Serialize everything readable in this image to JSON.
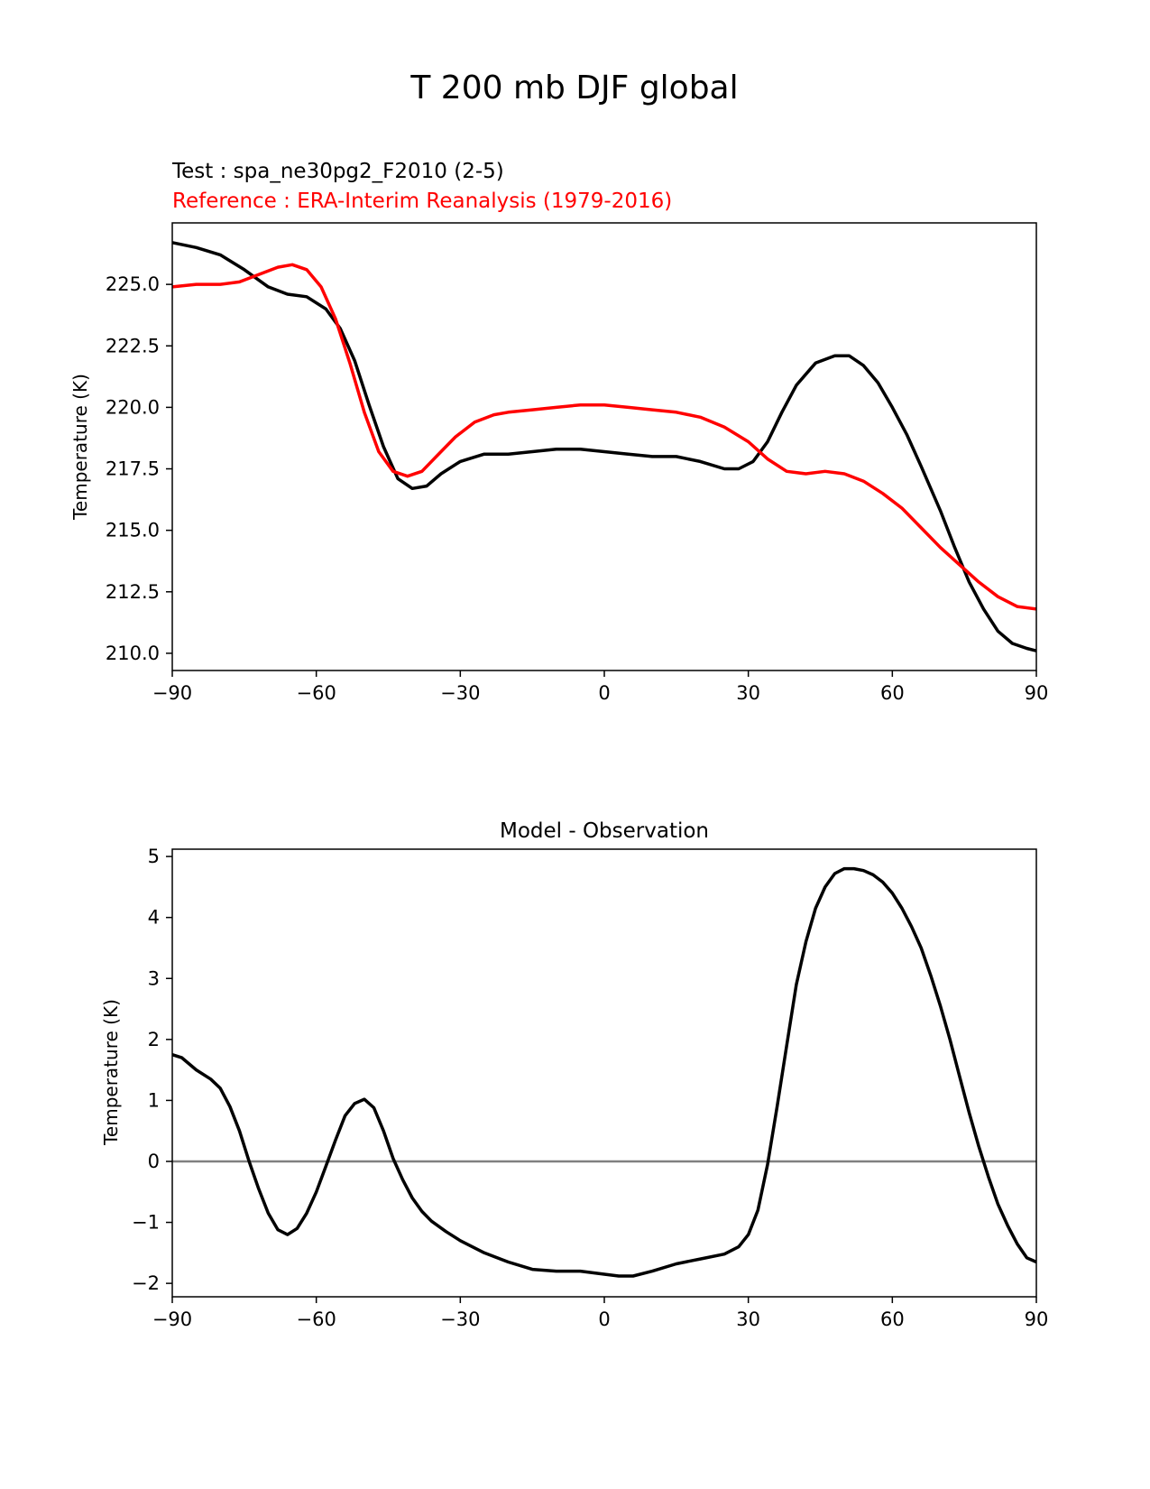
{
  "figure": {
    "suptitle": "T 200 mb DJF global"
  },
  "colors": {
    "test": "#000000",
    "reference": "#ff0000",
    "zero_line": "#808080",
    "axes": "#000000"
  },
  "chart_data": [
    {
      "type": "line",
      "test_label": "Test : spa_ne30pg2_F2010 (2-5)",
      "reference_label": "Reference : ERA-Interim Reanalysis (1979-2016)",
      "title": "",
      "xlabel": "",
      "ylabel": "Temperature (K)",
      "xlim": [
        -90,
        90
      ],
      "ylim": [
        209.3,
        227.5
      ],
      "xticks": [
        -90,
        -60,
        -30,
        0,
        30,
        60,
        90
      ],
      "xtick_labels": [
        "−90",
        "−60",
        "−30",
        "0",
        "30",
        "60",
        "90"
      ],
      "yticks": [
        210.0,
        212.5,
        215.0,
        217.5,
        220.0,
        222.5,
        225.0
      ],
      "ytick_labels": [
        "210.0",
        "212.5",
        "215.0",
        "217.5",
        "220.0",
        "222.5",
        "225.0"
      ],
      "grid": false,
      "series": [
        {
          "role": "test",
          "color": "#000000",
          "x": [
            -90,
            -85,
            -80,
            -75,
            -70,
            -66,
            -62,
            -58,
            -55,
            -52,
            -49,
            -46,
            -43,
            -40,
            -37,
            -34,
            -30,
            -25,
            -20,
            -15,
            -10,
            -5,
            0,
            5,
            10,
            15,
            20,
            25,
            28,
            31,
            34,
            37,
            40,
            44,
            48,
            51,
            54,
            57,
            60,
            63,
            66,
            70,
            73,
            76,
            79,
            82,
            85,
            88,
            90
          ],
          "y": [
            226.7,
            226.5,
            226.2,
            225.6,
            224.9,
            224.6,
            224.5,
            224.0,
            223.2,
            221.9,
            220.1,
            218.4,
            217.1,
            216.7,
            216.8,
            217.3,
            217.8,
            218.1,
            218.1,
            218.2,
            218.3,
            218.3,
            218.2,
            218.1,
            218.0,
            218.0,
            217.8,
            217.5,
            217.5,
            217.8,
            218.6,
            219.8,
            220.9,
            221.8,
            222.1,
            222.1,
            221.7,
            221.0,
            220.0,
            218.9,
            217.6,
            215.8,
            214.3,
            212.9,
            211.8,
            210.9,
            210.4,
            210.2,
            210.1
          ]
        },
        {
          "role": "reference",
          "color": "#ff0000",
          "x": [
            -90,
            -85,
            -80,
            -76,
            -72,
            -68,
            -65,
            -62,
            -59,
            -56,
            -53,
            -50,
            -47,
            -44,
            -41,
            -38,
            -35,
            -31,
            -27,
            -23,
            -20,
            -15,
            -10,
            -5,
            0,
            5,
            10,
            15,
            20,
            25,
            30,
            34,
            38,
            42,
            46,
            50,
            54,
            58,
            62,
            66,
            70,
            74,
            78,
            82,
            86,
            90
          ],
          "y": [
            224.9,
            225.0,
            225.0,
            225.1,
            225.4,
            225.7,
            225.8,
            225.6,
            224.9,
            223.6,
            221.8,
            219.8,
            218.2,
            217.4,
            217.2,
            217.4,
            218.0,
            218.8,
            219.4,
            219.7,
            219.8,
            219.9,
            220.0,
            220.1,
            220.1,
            220.0,
            219.9,
            219.8,
            219.6,
            219.2,
            218.6,
            217.9,
            217.4,
            217.3,
            217.4,
            217.3,
            217.0,
            216.5,
            215.9,
            215.1,
            214.3,
            213.6,
            212.9,
            212.3,
            211.9,
            211.8
          ]
        }
      ]
    },
    {
      "type": "line",
      "title": "Model - Observation",
      "xlabel": "",
      "ylabel": "Temperature (K)",
      "xlim": [
        -90,
        90
      ],
      "ylim": [
        -2.22,
        5.12
      ],
      "xticks": [
        -90,
        -60,
        -30,
        0,
        30,
        60,
        90
      ],
      "xtick_labels": [
        "−90",
        "−60",
        "−30",
        "0",
        "30",
        "60",
        "90"
      ],
      "yticks": [
        -2,
        -1,
        0,
        1,
        2,
        3,
        4,
        5
      ],
      "ytick_labels": [
        "−2",
        "−1",
        "0",
        "1",
        "2",
        "3",
        "4",
        "5"
      ],
      "grid": false,
      "zero_line": true,
      "series": [
        {
          "role": "difference",
          "color": "#000000",
          "x": [
            -90,
            -88,
            -85,
            -82,
            -80,
            -78,
            -76,
            -74,
            -72,
            -70,
            -68,
            -66,
            -64,
            -62,
            -60,
            -58,
            -56,
            -54,
            -52,
            -50,
            -48,
            -46,
            -44,
            -42,
            -40,
            -38,
            -36,
            -33,
            -30,
            -25,
            -20,
            -15,
            -10,
            -5,
            0,
            3,
            6,
            10,
            15,
            20,
            25,
            28,
            30,
            32,
            34,
            36,
            38,
            40,
            42,
            44,
            46,
            48,
            50,
            52,
            54,
            56,
            58,
            60,
            62,
            64,
            66,
            68,
            70,
            72,
            74,
            76,
            78,
            80,
            82,
            84,
            86,
            88,
            90
          ],
          "y": [
            1.75,
            1.7,
            1.5,
            1.35,
            1.2,
            0.9,
            0.5,
            0.0,
            -0.45,
            -0.85,
            -1.12,
            -1.2,
            -1.1,
            -0.85,
            -0.5,
            -0.08,
            0.35,
            0.75,
            0.95,
            1.02,
            0.88,
            0.5,
            0.05,
            -0.3,
            -0.6,
            -0.82,
            -0.98,
            -1.15,
            -1.3,
            -1.5,
            -1.65,
            -1.77,
            -1.8,
            -1.8,
            -1.85,
            -1.88,
            -1.88,
            -1.8,
            -1.68,
            -1.6,
            -1.52,
            -1.4,
            -1.2,
            -0.8,
            -0.05,
            0.9,
            1.9,
            2.9,
            3.6,
            4.15,
            4.5,
            4.72,
            4.8,
            4.8,
            4.77,
            4.7,
            4.58,
            4.4,
            4.15,
            3.85,
            3.5,
            3.05,
            2.55,
            2.0,
            1.4,
            0.8,
            0.25,
            -0.25,
            -0.7,
            -1.05,
            -1.35,
            -1.58,
            -1.65
          ]
        }
      ]
    }
  ]
}
